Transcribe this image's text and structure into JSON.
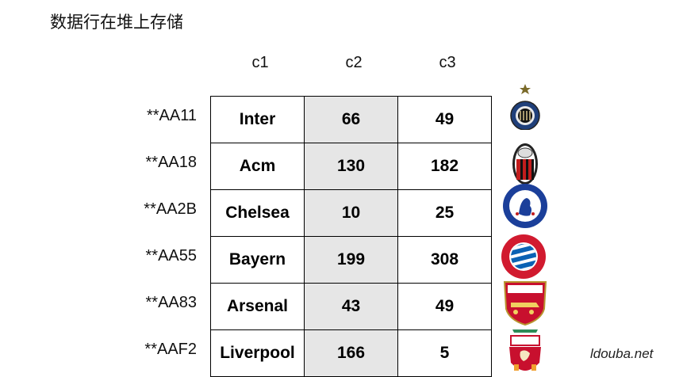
{
  "title": "数据行在堆上存储",
  "columns": [
    "c1",
    "c2",
    "c3"
  ],
  "rows": [
    {
      "id": "**AA11",
      "c1": "Inter",
      "c2": "66",
      "c3": "49",
      "logo": "inter-milan-crest-icon"
    },
    {
      "id": "**AA18",
      "c1": "Acm",
      "c2": "130",
      "c3": "182",
      "logo": "ac-milan-crest-icon"
    },
    {
      "id": "**AA2B",
      "c1": "Chelsea",
      "c2": "10",
      "c3": "25",
      "logo": "chelsea-crest-icon"
    },
    {
      "id": "**AA55",
      "c1": "Bayern",
      "c2": "199",
      "c3": "308",
      "logo": "bayern-crest-icon"
    },
    {
      "id": "**AA83",
      "c1": "Arsenal",
      "c2": "43",
      "c3": "49",
      "logo": "arsenal-crest-icon"
    },
    {
      "id": "**AAF2",
      "c1": "Liverpool",
      "c2": "166",
      "c3": "5",
      "logo": "liverpool-crest-icon"
    }
  ],
  "watermark": "ldouba.net",
  "colors": {
    "shaded_column": "#e6e6e6",
    "border": "#000000"
  }
}
